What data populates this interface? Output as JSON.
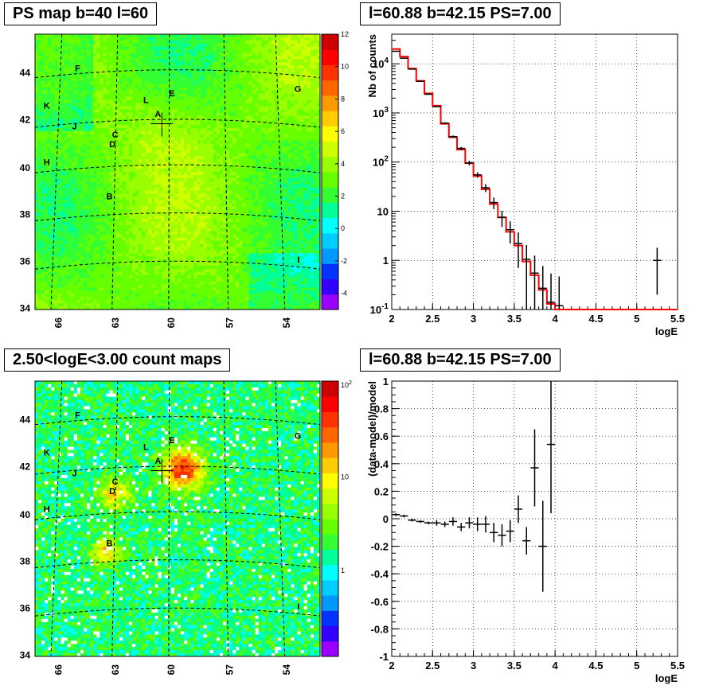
{
  "chart_data": [
    {
      "type": "heatmap",
      "title": "PS map b=40 l=60",
      "x_ticks": [
        "66",
        "63",
        "60",
        "57",
        "54"
      ],
      "y_ticks": [
        "44",
        "42",
        "40",
        "38",
        "36",
        "34"
      ],
      "colorbar_ticks": [
        "12",
        "10",
        "8",
        "6",
        "4",
        "2",
        "0",
        "-2",
        "-4"
      ],
      "colorbar_range": [
        -5,
        12
      ],
      "source_labels": [
        "F",
        "K",
        "L",
        "E",
        "G",
        "A",
        "J",
        "C",
        "D",
        "H",
        "B",
        "I"
      ],
      "colors": [
        "#9900ff",
        "#3300ff",
        "#0033ff",
        "#0099ff",
        "#00ccff",
        "#00ffff",
        "#00ff99",
        "#33ff33",
        "#66ff00",
        "#99ff00",
        "#ccff00",
        "#ffff00",
        "#ffcc00",
        "#ff9900",
        "#ff6600",
        "#ff3300",
        "#ff0000",
        "#cc0000"
      ],
      "grid": true,
      "crosshair_label": "A"
    },
    {
      "type": "line",
      "title": "l=60.88 b=42.15 PS=7.00",
      "xlabel": "logE",
      "ylabel": "Nb of counts",
      "log_y": true,
      "xlim": [
        2,
        5.5
      ],
      "ylim": [
        0.1,
        40000
      ],
      "x_ticks": [
        "2",
        "2.5",
        "3",
        "3.5",
        "4",
        "4.5",
        "5",
        "5.5"
      ],
      "y_ticks": [
        "10^4",
        "10^3",
        "10^2",
        "10",
        "1",
        "10^-1"
      ],
      "series": [
        {
          "style": "step",
          "color": "#ff0000",
          "x": [
            2.0,
            2.1,
            2.2,
            2.3,
            2.4,
            2.5,
            2.6,
            2.7,
            2.8,
            2.9,
            3.0,
            3.1,
            3.2,
            3.3,
            3.4,
            3.5,
            3.6,
            3.7,
            3.8,
            3.9,
            4.0,
            4.1,
            4.2,
            4.3,
            4.4,
            5.5
          ],
          "y": [
            20000,
            14000,
            8000,
            4500,
            2500,
            1400,
            600,
            320,
            180,
            95,
            52,
            28,
            14,
            7.5,
            3.8,
            2.0,
            0.95,
            0.5,
            0.25,
            0.13,
            0.1,
            0.1,
            0.1,
            0.1,
            0.1,
            0.1
          ]
        },
        {
          "style": "points",
          "color": "#000000",
          "x": [
            2.05,
            2.15,
            2.25,
            2.35,
            2.45,
            2.55,
            2.65,
            2.75,
            2.85,
            2.95,
            3.05,
            3.15,
            3.25,
            3.35,
            3.45,
            3.55,
            3.65,
            3.75,
            3.85,
            3.95,
            4.05,
            5.25
          ],
          "y": [
            18000,
            13000,
            7800,
            4400,
            2400,
            1350,
            620,
            330,
            190,
            96,
            55,
            30,
            15,
            7.5,
            4.2,
            2.2,
            1.05,
            0.55,
            0.27,
            0.14,
            0.12,
            1.0
          ],
          "err": [
            150,
            120,
            90,
            70,
            50,
            37,
            25,
            18,
            14,
            10,
            7,
            5.5,
            3.9,
            2.7,
            2.0,
            1.5,
            1.0,
            0.7,
            0.5,
            0.4,
            0.35,
            0.8
          ]
        }
      ]
    },
    {
      "type": "heatmap",
      "title": "2.50<logE<3.00 count maps",
      "x_ticks": [
        "66",
        "63",
        "60",
        "57",
        "54"
      ],
      "y_ticks": [
        "44",
        "42",
        "40",
        "38",
        "36",
        "34"
      ],
      "colorbar_ticks": [
        "10^2",
        "10",
        "1"
      ],
      "log_scale": true,
      "source_labels": [
        "F",
        "K",
        "L",
        "E",
        "G",
        "A",
        "J",
        "C",
        "D",
        "H",
        "B",
        "I"
      ],
      "grid": true,
      "crosshair_label": "A"
    },
    {
      "type": "scatter",
      "title": "l=60.88 b=42.15 PS=7.00",
      "xlabel": "logE",
      "ylabel": "(data-model)/model",
      "xlim": [
        2,
        5.5
      ],
      "ylim": [
        -1,
        1
      ],
      "x_ticks": [
        "2",
        "2.5",
        "3",
        "3.5",
        "4",
        "4.5",
        "5",
        "5.5"
      ],
      "y_ticks": [
        "1",
        "0.8",
        "0.6",
        "0.4",
        "0.2",
        "0",
        "-0.2",
        "-0.4",
        "-0.6",
        "-0.8",
        "-1"
      ],
      "series": [
        {
          "style": "points",
          "color": "#000000",
          "x": [
            2.05,
            2.15,
            2.25,
            2.35,
            2.45,
            2.55,
            2.65,
            2.75,
            2.85,
            2.95,
            3.05,
            3.15,
            3.25,
            3.35,
            3.45,
            3.55,
            3.65,
            3.75,
            3.85,
            3.95
          ],
          "y": [
            0.03,
            0.02,
            -0.01,
            -0.02,
            -0.03,
            -0.03,
            -0.04,
            -0.02,
            -0.06,
            -0.03,
            -0.04,
            -0.04,
            -0.1,
            -0.12,
            -0.09,
            0.07,
            -0.16,
            0.37,
            -0.2,
            0.54
          ],
          "err": [
            0.01,
            0.01,
            0.01,
            0.01,
            0.01,
            0.02,
            0.02,
            0.03,
            0.03,
            0.04,
            0.05,
            0.06,
            0.07,
            0.08,
            0.08,
            0.1,
            0.1,
            0.28,
            0.33,
            0.5
          ]
        }
      ]
    }
  ]
}
